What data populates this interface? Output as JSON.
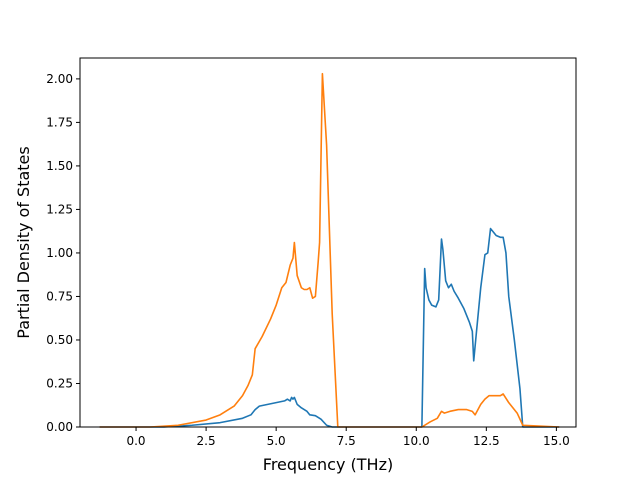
{
  "chart_data": {
    "type": "line",
    "title": "",
    "xlabel": "Frequency (THz)",
    "ylabel": "Partial Density of States",
    "xlim": [
      -2.0,
      15.7
    ],
    "ylim": [
      0.0,
      2.12
    ],
    "xticks": [
      0.0,
      2.5,
      5.0,
      7.5,
      10.0,
      12.5,
      15.0
    ],
    "xtick_labels": [
      "0.0",
      "2.5",
      "5.0",
      "7.5",
      "10.0",
      "12.5",
      "15.0"
    ],
    "yticks": [
      0.0,
      0.25,
      0.5,
      0.75,
      1.0,
      1.25,
      1.5,
      1.75,
      2.0
    ],
    "ytick_labels": [
      "0.00",
      "0.25",
      "0.50",
      "0.75",
      "1.00",
      "1.25",
      "1.50",
      "1.75",
      "2.00"
    ],
    "grid": false,
    "legend": "none",
    "series": [
      {
        "color": "#1f77b4",
        "x": [
          -1.3,
          1.0,
          2.0,
          3.0,
          3.8,
          4.1,
          4.25,
          4.4,
          4.7,
          5.0,
          5.3,
          5.4,
          5.5,
          5.55,
          5.6,
          5.65,
          5.75,
          5.9,
          6.1,
          6.2,
          6.4,
          6.6,
          6.8,
          7.0,
          7.2,
          10.2,
          10.3,
          10.35,
          10.45,
          10.55,
          10.7,
          10.8,
          10.9,
          10.95,
          11.05,
          11.15,
          11.25,
          11.35,
          11.5,
          11.7,
          11.9,
          12.0,
          12.05,
          12.15,
          12.3,
          12.45,
          12.55,
          12.65,
          12.75,
          12.85,
          13.0,
          13.1,
          13.2,
          13.3,
          13.5,
          13.7,
          13.8,
          15.1
        ],
        "y": [
          0.0,
          0.0,
          0.01,
          0.025,
          0.05,
          0.07,
          0.1,
          0.12,
          0.13,
          0.14,
          0.15,
          0.16,
          0.15,
          0.17,
          0.16,
          0.17,
          0.13,
          0.11,
          0.09,
          0.07,
          0.065,
          0.045,
          0.01,
          0.0,
          0.0,
          0.0,
          0.91,
          0.8,
          0.73,
          0.7,
          0.69,
          0.73,
          1.08,
          1.02,
          0.84,
          0.8,
          0.82,
          0.78,
          0.74,
          0.68,
          0.6,
          0.55,
          0.38,
          0.55,
          0.8,
          0.99,
          1.0,
          1.14,
          1.12,
          1.1,
          1.09,
          1.09,
          1.0,
          0.75,
          0.5,
          0.22,
          0.0,
          0.0
        ]
      },
      {
        "color": "#ff7f0e",
        "x": [
          -1.3,
          0.5,
          1.5,
          2.5,
          3.0,
          3.5,
          3.8,
          4.0,
          4.15,
          4.25,
          4.5,
          4.8,
          5.0,
          5.2,
          5.35,
          5.5,
          5.6,
          5.65,
          5.75,
          5.9,
          6.0,
          6.1,
          6.2,
          6.3,
          6.4,
          6.5,
          6.55,
          6.65,
          6.8,
          7.0,
          7.2,
          10.2,
          10.5,
          10.75,
          10.9,
          11.0,
          11.2,
          11.5,
          11.8,
          12.0,
          12.1,
          12.3,
          12.45,
          12.6,
          12.8,
          13.0,
          13.1,
          13.3,
          13.6,
          13.8,
          15.1
        ],
        "y": [
          0.0,
          0.0,
          0.01,
          0.04,
          0.07,
          0.12,
          0.18,
          0.24,
          0.3,
          0.45,
          0.52,
          0.62,
          0.7,
          0.8,
          0.83,
          0.93,
          0.97,
          1.06,
          0.87,
          0.8,
          0.79,
          0.79,
          0.8,
          0.74,
          0.75,
          0.95,
          1.06,
          2.03,
          1.62,
          0.65,
          0.0,
          0.0,
          0.03,
          0.05,
          0.09,
          0.08,
          0.09,
          0.1,
          0.1,
          0.09,
          0.07,
          0.13,
          0.16,
          0.18,
          0.18,
          0.18,
          0.19,
          0.14,
          0.08,
          0.01,
          0.0
        ]
      }
    ]
  }
}
